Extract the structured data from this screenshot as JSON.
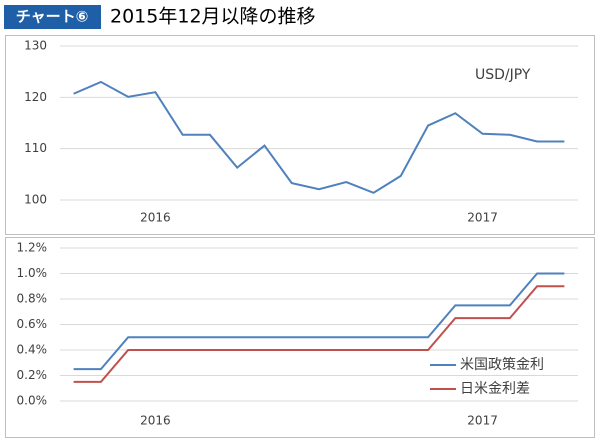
{
  "header": {
    "badge": "チャート⑥",
    "title": "2015年12月以降の推移"
  },
  "chart_data": [
    {
      "type": "line",
      "categories": [
        null,
        null,
        null,
        "2016",
        null,
        null,
        null,
        null,
        null,
        null,
        null,
        null,
        null,
        null,
        null,
        "2017",
        null,
        null,
        null
      ],
      "series": [
        {
          "name": "USD/JPY",
          "color": "#4f81bd",
          "values": [
            120.7,
            123,
            120.1,
            121,
            112.7,
            112.7,
            106.3,
            110.6,
            103.3,
            102.1,
            103.5,
            101.4,
            104.7,
            114.5,
            116.9,
            112.9,
            112.7,
            111.4,
            111.4
          ]
        }
      ],
      "ylim": [
        100,
        130
      ],
      "yticks": [
        100,
        110,
        120,
        130
      ],
      "grid": true
    },
    {
      "type": "line",
      "categories": [
        null,
        null,
        null,
        "2016",
        null,
        null,
        null,
        null,
        null,
        null,
        null,
        null,
        null,
        null,
        null,
        "2017",
        null,
        null,
        null
      ],
      "series": [
        {
          "name": "米国政策金利",
          "color": "#4f81bd",
          "values": [
            0.25,
            0.25,
            0.5,
            0.5,
            0.5,
            0.5,
            0.5,
            0.5,
            0.5,
            0.5,
            0.5,
            0.5,
            0.5,
            0.5,
            0.75,
            0.75,
            0.75,
            1.0,
            1.0
          ]
        },
        {
          "name": "日米金利差",
          "color": "#c0504d",
          "values": [
            0.15,
            0.15,
            0.4,
            0.4,
            0.4,
            0.4,
            0.4,
            0.4,
            0.4,
            0.4,
            0.4,
            0.4,
            0.4,
            0.4,
            0.65,
            0.65,
            0.65,
            0.9,
            0.9
          ]
        }
      ],
      "ylim": [
        0,
        1.2
      ],
      "yticks": [
        {
          "value": 0,
          "label": "0.0%"
        },
        {
          "value": 0.2,
          "label": "0.2%"
        },
        {
          "value": 0.4,
          "label": "0.4%"
        },
        {
          "value": 0.6,
          "label": "0.6%"
        },
        {
          "value": 0.8,
          "label": "0.8%"
        },
        {
          "value": 1.0,
          "label": "1.0%"
        },
        {
          "value": 1.2,
          "label": "1.2%"
        }
      ],
      "grid": true,
      "legend": "lower right"
    }
  ]
}
